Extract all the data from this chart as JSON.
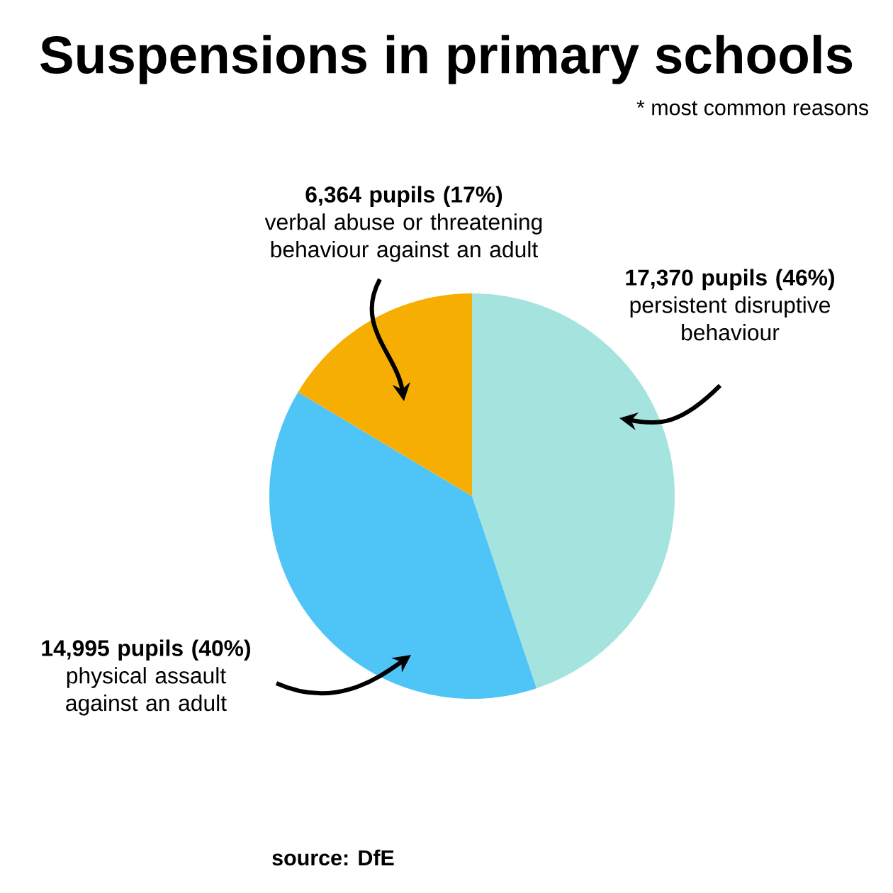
{
  "chart_data": {
    "type": "pie",
    "title": "Suspensions in primary schools",
    "subtitle": "* most common reasons",
    "categories": [
      "persistent disruptive behaviour",
      "physical assault against an adult",
      "verbal abuse or threatening behaviour against an adult"
    ],
    "values": [
      17370,
      14995,
      6364
    ],
    "value_labels": [
      "17,370 pupils (46%)",
      "14,995 pupils (40%)",
      "6,364 pupils (17%)"
    ],
    "colors": [
      "#a4e3de",
      "#4ec4f7",
      "#f7ae03"
    ],
    "annotations": [
      "source: DfE"
    ]
  }
}
